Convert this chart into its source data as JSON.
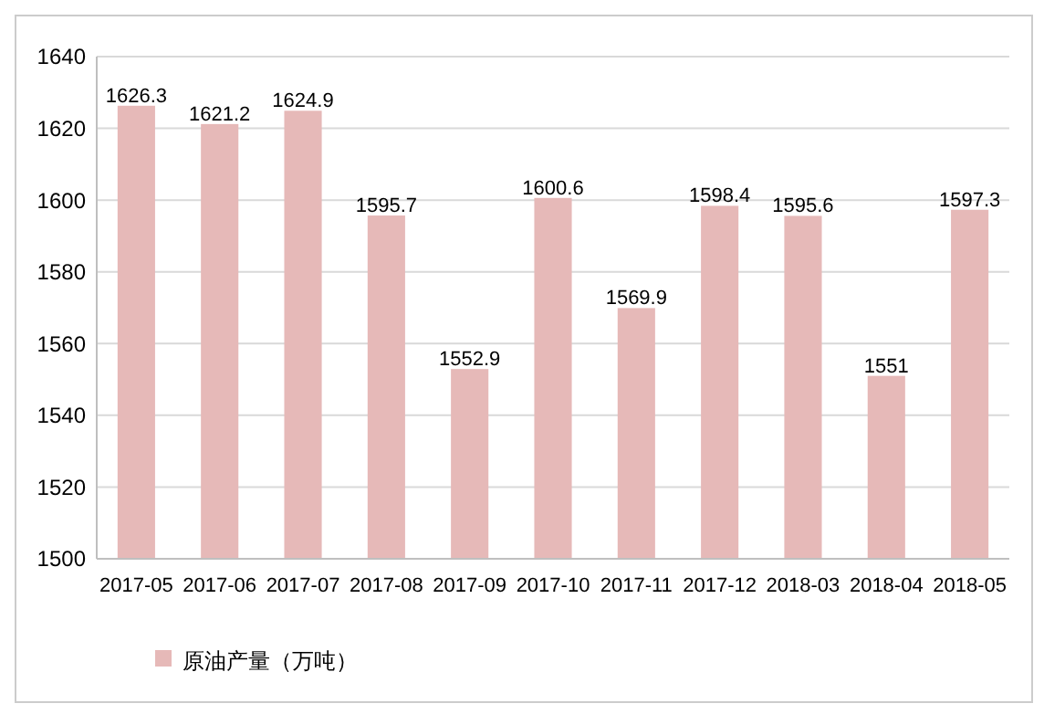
{
  "chart_data": {
    "type": "bar",
    "categories": [
      "2017-05",
      "2017-06",
      "2017-07",
      "2017-08",
      "2017-09",
      "2017-10",
      "2017-11",
      "2017-12",
      "2018-03",
      "2018-04",
      "2018-05"
    ],
    "series": [
      {
        "name": "原油产量（万吨）",
        "color": "#e6b9b8",
        "values": [
          1626.3,
          1621.2,
          1624.9,
          1595.7,
          1552.9,
          1600.6,
          1569.9,
          1598.4,
          1595.6,
          1551,
          1597.3
        ]
      }
    ],
    "ylim": [
      1500,
      1640
    ],
    "yticks": [
      1500,
      1520,
      1540,
      1560,
      1580,
      1600,
      1620,
      1640
    ],
    "grid": "y",
    "data_labels": true,
    "legend": "bottom left"
  }
}
